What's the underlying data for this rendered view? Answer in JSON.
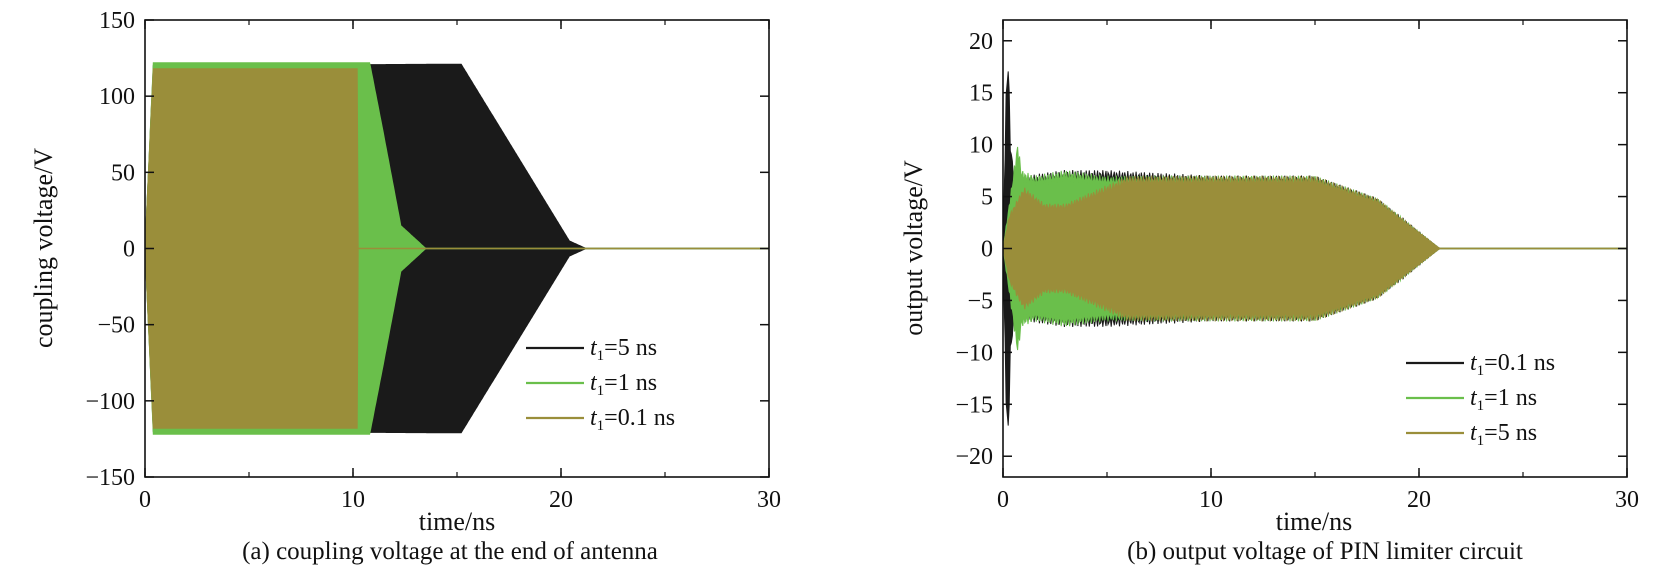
{
  "chart_data": [
    {
      "type": "line",
      "caption": "(a) coupling voltage at the end of antenna",
      "xlabel": "time/ns",
      "ylabel": "coupling voltage/V",
      "xlim": [
        0,
        30
      ],
      "ylim": [
        -150,
        150
      ],
      "xticks": [
        "0",
        "10",
        "20",
        "30"
      ],
      "yticks": [
        "150",
        "100",
        "50",
        "0",
        "−50",
        "−100",
        "−150"
      ],
      "grid": false,
      "legend_position": "bottom-right",
      "series": [
        {
          "name": "t1=5 ns",
          "legend": {
            "italic": "t",
            "sub": "1",
            "rest": "=5 ns"
          },
          "color": "#1a1a1a",
          "envelope": {
            "t": [
              0,
              0.4,
              15.2,
              20.4,
              21.2,
              30
            ],
            "amp": [
              0,
              120,
              121,
              5,
              0,
              0
            ]
          }
        },
        {
          "name": "t1=1 ns",
          "legend": {
            "italic": "t",
            "sub": "1",
            "rest": "=1 ns"
          },
          "color": "#6abf4b",
          "envelope": {
            "t": [
              0,
              0.4,
              10.8,
              11.4,
              12.3,
              13.5,
              30
            ],
            "amp": [
              0,
              122,
              122,
              80,
              15,
              0,
              0
            ]
          }
        },
        {
          "name": "t1=0.1 ns",
          "legend": {
            "italic": "t",
            "sub": "1",
            "rest": "=0.1 ns"
          },
          "color": "#9a8e3a",
          "envelope": {
            "t": [
              0,
              0.4,
              10.2,
              10.25,
              30
            ],
            "amp": [
              0,
              118,
              118,
              0,
              0
            ]
          }
        }
      ]
    },
    {
      "type": "line",
      "caption": "(b) output voltage of PIN limiter circuit",
      "xlabel": "time/ns",
      "ylabel": "output voltage/V",
      "xlim": [
        0,
        30
      ],
      "ylim": [
        -22,
        22
      ],
      "xticks": [
        "0",
        "10",
        "20",
        "30"
      ],
      "yticks": [
        "20",
        "15",
        "10",
        "5",
        "0",
        "−5",
        "−10",
        "−15",
        "−20"
      ],
      "grid": false,
      "legend_position": "bottom-right",
      "series": [
        {
          "name": "t1=0.1 ns",
          "legend": {
            "italic": "t",
            "sub": "1",
            "rest": "=0.1 ns"
          },
          "color": "#1a1a1a",
          "envelope": {
            "t": [
              0,
              0.15,
              0.25,
              0.35,
              0.6,
              1.0,
              3.0,
              5.0,
              10.0,
              15.0,
              18.0,
              20.0,
              21.0,
              30
            ],
            "amp": [
              0,
              14,
              18,
              10,
              5,
              6.5,
              7,
              7,
              6.5,
              6.5,
              4.5,
              1.5,
              0,
              0
            ]
          }
        },
        {
          "name": "t1=1 ns",
          "legend": {
            "italic": "t",
            "sub": "1",
            "rest": "=1 ns"
          },
          "color": "#6abf4b",
          "envelope": {
            "t": [
              0,
              0.3,
              0.7,
              0.9,
              1.5,
              3.0,
              5.0,
              10.0,
              15.0,
              18.0,
              20.0,
              21.0,
              30
            ],
            "amp": [
              0,
              4,
              9.5,
              7,
              6.5,
              7,
              6.5,
              6.5,
              6.5,
              4.5,
              1.5,
              0,
              0
            ]
          }
        },
        {
          "name": "t1=5 ns",
          "legend": {
            "italic": "t",
            "sub": "1",
            "rest": "=5 ns"
          },
          "color": "#9a8e3a",
          "envelope": {
            "t": [
              0,
              0.3,
              1.0,
              2.0,
              3.0,
              6.0,
              10.0,
              15.0,
              18.0,
              20.0,
              21.0,
              30
            ],
            "amp": [
              0,
              3,
              5.5,
              4,
              4,
              6.5,
              6.5,
              6.5,
              4.5,
              1.5,
              0,
              0
            ]
          }
        }
      ]
    }
  ]
}
